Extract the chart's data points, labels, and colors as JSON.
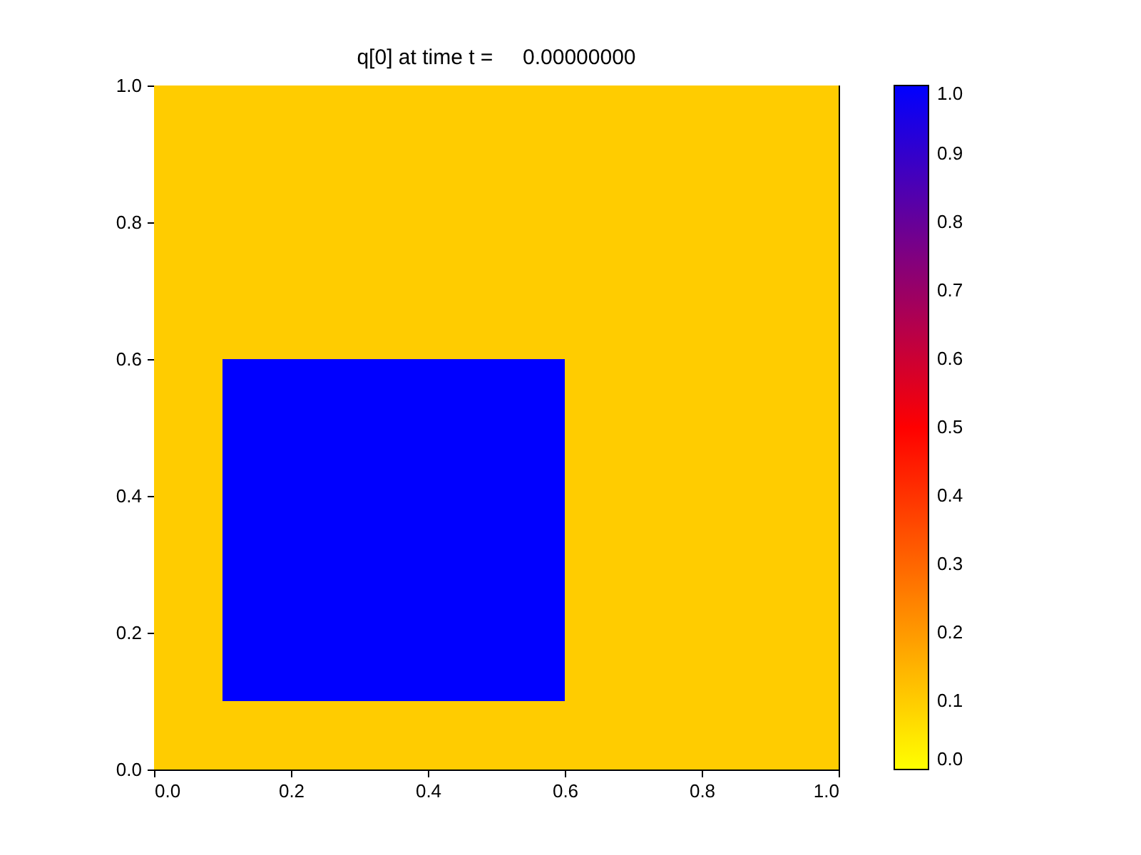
{
  "chart_data": {
    "type": "heatmap",
    "title": "q[0] at time t =     0.00000000",
    "cells": [
      [
        0.1,
        0.1,
        0.1,
        0.1,
        0.1,
        0.1,
        0.1,
        0.1,
        0.1,
        0.1
      ],
      [
        0.1,
        0.1,
        0.1,
        0.1,
        0.1,
        0.1,
        0.1,
        0.1,
        0.1,
        0.1
      ],
      [
        0.1,
        0.1,
        0.1,
        0.1,
        0.1,
        0.1,
        0.1,
        0.1,
        0.1,
        0.1
      ],
      [
        0.1,
        0.1,
        0.1,
        0.1,
        0.1,
        0.1,
        0.1,
        0.1,
        0.1,
        0.1
      ],
      [
        0.1,
        1.0,
        1.0,
        1.0,
        1.0,
        1.0,
        0.1,
        0.1,
        0.1,
        0.1
      ],
      [
        0.1,
        1.0,
        1.0,
        1.0,
        1.0,
        1.0,
        0.1,
        0.1,
        0.1,
        0.1
      ],
      [
        0.1,
        1.0,
        1.0,
        1.0,
        1.0,
        1.0,
        0.1,
        0.1,
        0.1,
        0.1
      ],
      [
        0.1,
        1.0,
        1.0,
        1.0,
        1.0,
        1.0,
        0.1,
        0.1,
        0.1,
        0.1
      ],
      [
        0.1,
        1.0,
        1.0,
        1.0,
        1.0,
        1.0,
        0.1,
        0.1,
        0.1,
        0.1
      ],
      [
        0.1,
        0.1,
        0.1,
        0.1,
        0.1,
        0.1,
        0.1,
        0.1,
        0.1,
        0.1
      ]
    ],
    "colors": [
      "#ffff00",
      "#ff0000",
      "#0000ff"
    ],
    "xlim": [
      0,
      1
    ],
    "ylim": [
      0,
      1
    ],
    "xticks": [
      {
        "value": 0,
        "label": "0.0"
      },
      {
        "value": 0.2,
        "label": "0.2"
      },
      {
        "value": 0.4,
        "label": "0.4"
      },
      {
        "value": 0.6,
        "label": "0.6"
      },
      {
        "value": 0.8,
        "label": "0.8"
      },
      {
        "value": 1,
        "label": "1.0"
      }
    ],
    "yticks": [
      {
        "value": 0,
        "label": "0.0"
      },
      {
        "value": 0.2,
        "label": "0.2"
      },
      {
        "value": 0.4,
        "label": "0.4"
      },
      {
        "value": 0.6,
        "label": "0.6"
      },
      {
        "value": 0.8,
        "label": "0.8"
      },
      {
        "value": 1,
        "label": "1.0"
      }
    ],
    "clim": [
      0,
      1
    ],
    "cticks": [
      {
        "value": 0,
        "label": "0.0"
      },
      {
        "value": 0.1,
        "label": "0.1"
      },
      {
        "value": 0.2,
        "label": "0.2"
      },
      {
        "value": 0.3,
        "label": "0.3"
      },
      {
        "value": 0.4,
        "label": "0.4"
      },
      {
        "value": 0.5,
        "label": "0.5"
      },
      {
        "value": 0.6,
        "label": "0.6"
      },
      {
        "value": 0.7,
        "label": "0.7"
      },
      {
        "value": 0.8,
        "label": "0.8"
      },
      {
        "value": 0.9,
        "label": "0.9"
      },
      {
        "value": 1,
        "label": "1.0"
      }
    ]
  }
}
